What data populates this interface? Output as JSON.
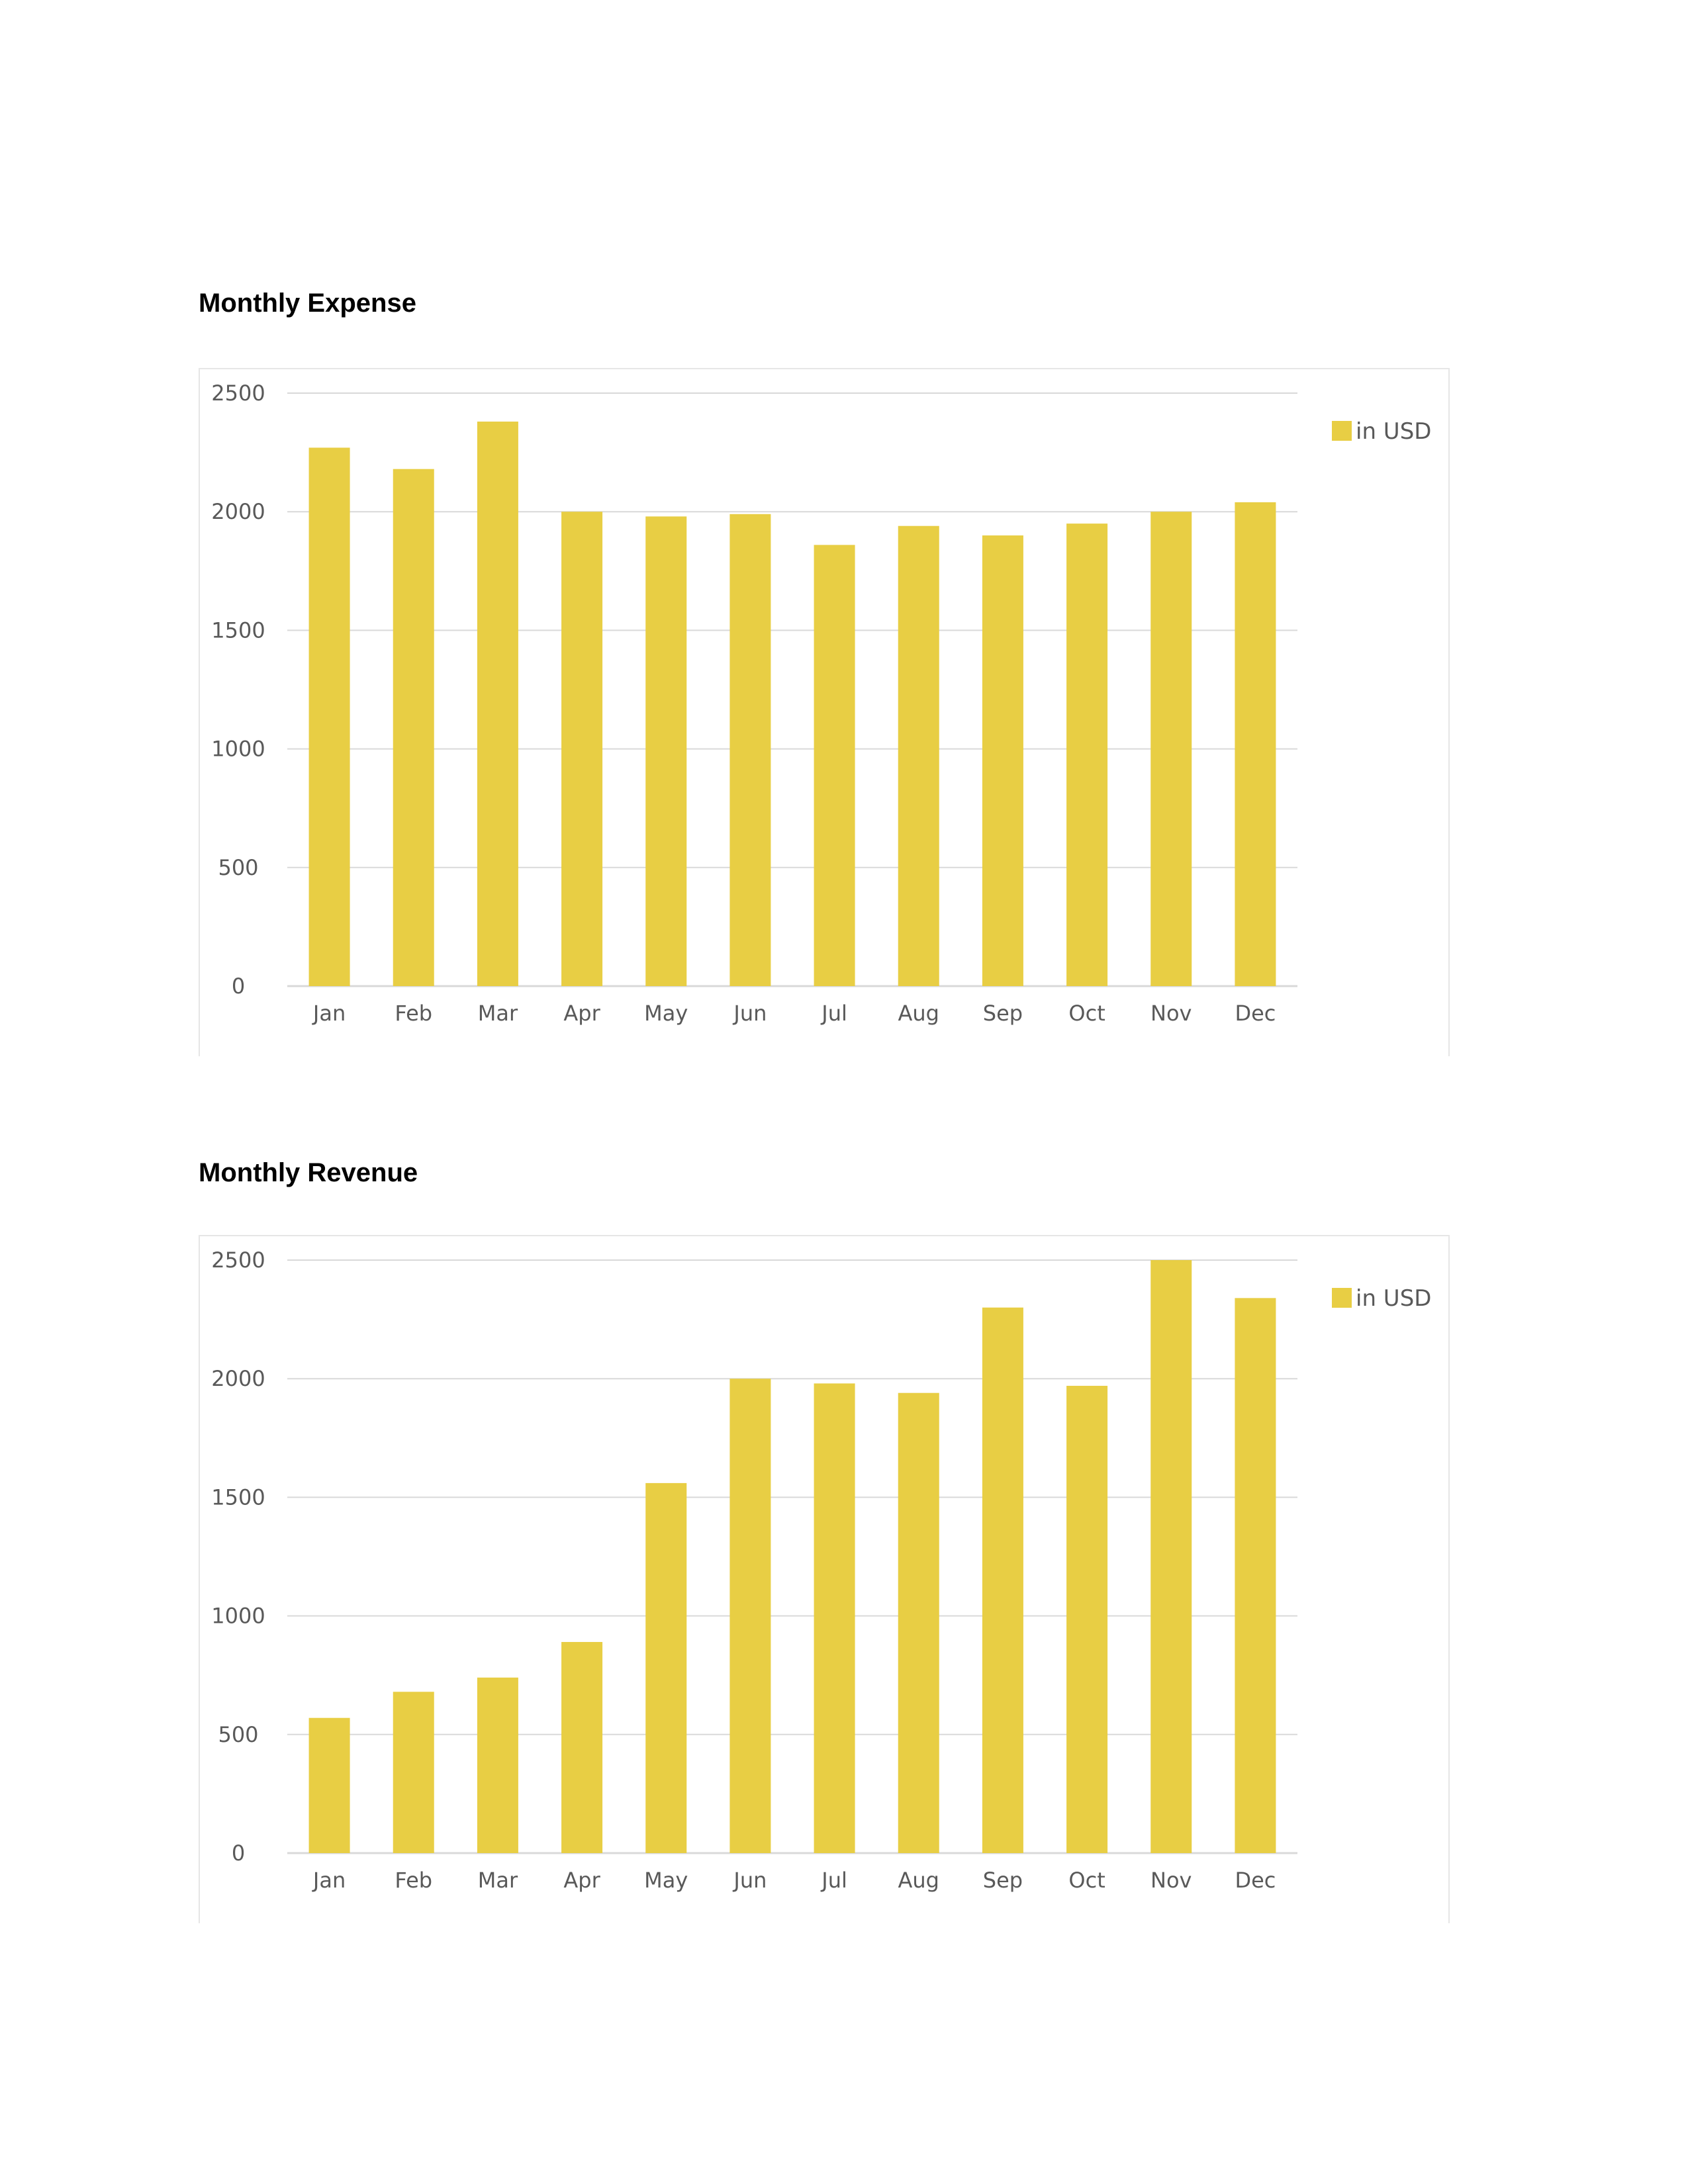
{
  "charts": [
    {
      "title": "Monthly Expense"
    },
    {
      "title": "Monthly Revenue"
    }
  ],
  "chart_data": [
    {
      "type": "bar",
      "title": "Monthly Expense",
      "categories": [
        "Jan",
        "Feb",
        "Mar",
        "Apr",
        "May",
        "Jun",
        "Jul",
        "Aug",
        "Sep",
        "Oct",
        "Nov",
        "Dec"
      ],
      "series": [
        {
          "name": "in USD",
          "values": [
            2270,
            2180,
            2380,
            2000,
            1980,
            1990,
            1860,
            1940,
            1900,
            1950,
            2000,
            2040
          ]
        }
      ],
      "y_ticks": [
        "0",
        "500",
        "1000",
        "1500",
        "2000",
        "2500"
      ],
      "ylim": [
        0,
        2500
      ],
      "grid": true,
      "legend": "right",
      "color": "#E8CE44"
    },
    {
      "type": "bar",
      "title": "Monthly Revenue",
      "categories": [
        "Jan",
        "Feb",
        "Mar",
        "Apr",
        "May",
        "Jun",
        "Jul",
        "Aug",
        "Sep",
        "Oct",
        "Nov",
        "Dec"
      ],
      "series": [
        {
          "name": "in USD",
          "values": [
            570,
            680,
            740,
            890,
            1560,
            2000,
            1980,
            1940,
            2300,
            1970,
            2500,
            2340
          ]
        }
      ],
      "y_ticks": [
        "0",
        "500",
        "1000",
        "1500",
        "2000",
        "2500"
      ],
      "ylim": [
        0,
        2500
      ],
      "grid": true,
      "legend": "right",
      "color": "#E8CE44"
    }
  ],
  "colors": {
    "bar": "#E8CE44",
    "grid": "#d9d9d9",
    "text": "#595959"
  }
}
